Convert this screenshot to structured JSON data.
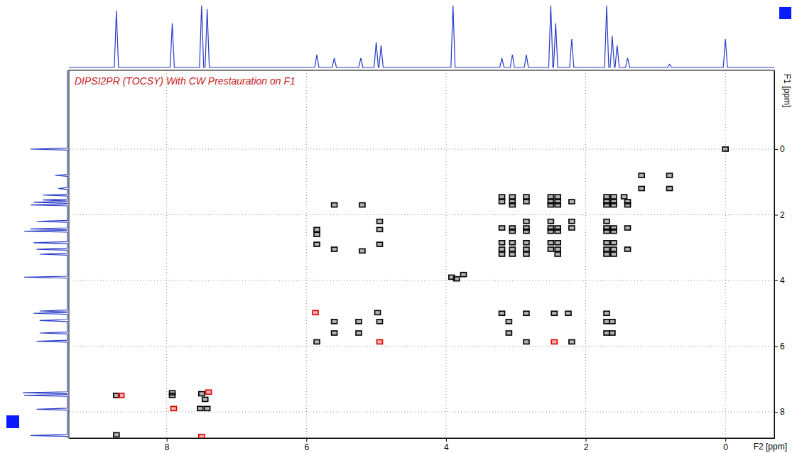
{
  "chart_data": {
    "type": "scatter",
    "title": "DIPSI2PR (TOCSY) With CW Prestauration on F1",
    "x_label": "F2 [ppm]",
    "y_label": "F1 [ppm]",
    "xlim": [
      9.4,
      -0.7
    ],
    "ylim": [
      -2.4,
      8.8
    ],
    "xticks": [
      8,
      6,
      4,
      2,
      0
    ],
    "yticks": [
      0,
      2,
      4,
      6,
      8
    ],
    "grid": true,
    "series": [
      {
        "color": "#000000",
        "marker": "square",
        "x": [
          8.72,
          8.72,
          7.92,
          7.92,
          7.5,
          7.42,
          7.52,
          7.45,
          5.85,
          4.98,
          5.6,
          5.25,
          5.6,
          5.25,
          4.95,
          5.85,
          5.85,
          5.85,
          5.6,
          5.6,
          5.2,
          5.2,
          4.95,
          4.95,
          4.95,
          3.2,
          3.1,
          3.1,
          2.85,
          2.45,
          2.25,
          2.2,
          1.7,
          1.7,
          1.62,
          1.7,
          1.62,
          2.85,
          3.92,
          3.85,
          3.75,
          0,
          0.8,
          0.8,
          1.2,
          1.2,
          3.2,
          3.05,
          2.85,
          2.5,
          2.4,
          1.7,
          1.6,
          1.45,
          3.2,
          3.05,
          2.85,
          2.5,
          2.4,
          2.2,
          1.7,
          1.6,
          1.4,
          3.05,
          2.5,
          2.4,
          1.7,
          1.6,
          1.4,
          2.85,
          2.5,
          2.2,
          1.7,
          3.2,
          3.05,
          2.85,
          2.5,
          2.4,
          2.2,
          1.7,
          1.6,
          1.4,
          3.05,
          2.85,
          2.5,
          2.4,
          1.7,
          1.6,
          3.2,
          3.05,
          2.85,
          2.5,
          2.4,
          1.7,
          1.6,
          3.2,
          3.05,
          2.85,
          2.5,
          2.4,
          1.7,
          1.6,
          1.4,
          3.2,
          3.05,
          2.85,
          2.4,
          1.7,
          1.6
        ],
        "values": [
          8.7,
          7.5,
          7.42,
          7.5,
          7.45,
          7.9,
          7.9,
          7.62,
          5.87,
          4.98,
          5.25,
          5.25,
          5.6,
          5.6,
          5.25,
          2.45,
          2.6,
          2.9,
          1.7,
          3.05,
          1.7,
          3.1,
          2.2,
          2.45,
          2.9,
          5.0,
          5.25,
          5.6,
          5.87,
          5.0,
          5.0,
          5.87,
          5.0,
          5.25,
          5.25,
          5.6,
          5.6,
          5.0,
          3.9,
          3.95,
          3.82,
          0,
          0.8,
          1.2,
          0.8,
          1.2,
          1.45,
          1.45,
          1.45,
          1.45,
          1.45,
          1.45,
          1.45,
          1.45,
          1.6,
          1.6,
          1.6,
          1.6,
          1.6,
          1.6,
          1.6,
          1.6,
          1.6,
          1.7,
          1.7,
          1.7,
          1.7,
          1.7,
          1.7,
          2.2,
          2.2,
          2.2,
          2.2,
          2.4,
          2.4,
          2.4,
          2.4,
          2.4,
          2.4,
          2.4,
          2.4,
          2.4,
          2.5,
          2.5,
          2.5,
          2.5,
          2.5,
          2.5,
          2.85,
          2.85,
          2.85,
          2.85,
          2.85,
          2.85,
          2.85,
          3.05,
          3.05,
          3.05,
          3.05,
          3.05,
          3.05,
          3.05,
          3.05,
          3.2,
          3.2,
          3.2,
          3.2,
          3.2,
          3.2
        ]
      },
      {
        "color": "#e00000",
        "marker": "square",
        "x": [
          8.65,
          7.9,
          7.4,
          7.5,
          5.87,
          4.95,
          2.45
        ],
        "values": [
          7.5,
          7.9,
          7.4,
          8.75,
          4.98,
          5.87,
          5.87
        ]
      }
    ],
    "intensity_lim": [
      0,
      100
    ],
    "f2_projection": {
      "color": "#2a3cc8",
      "ppm": [
        9.4,
        8.75,
        8.72,
        8.69,
        7.95,
        7.92,
        7.89,
        7.53,
        7.5,
        7.47,
        7.45,
        7.42,
        7.39,
        5.88,
        5.85,
        5.82,
        5.63,
        5.6,
        5.57,
        5.25,
        5.22,
        5.19,
        5.03,
        5.0,
        4.97,
        4.96,
        4.93,
        4.9,
        3.93,
        3.9,
        3.87,
        3.23,
        3.2,
        3.17,
        3.08,
        3.05,
        3.02,
        2.88,
        2.85,
        2.82,
        2.53,
        2.5,
        2.47,
        2.46,
        2.43,
        2.4,
        2.23,
        2.2,
        2.17,
        1.73,
        1.7,
        1.67,
        1.65,
        1.62,
        1.59,
        1.58,
        1.55,
        1.52,
        1.43,
        1.4,
        1.37,
        0.83,
        0.8,
        0.77,
        0.03,
        0,
        -0.03,
        -0.7
      ],
      "values": [
        0,
        0,
        90,
        0,
        0,
        70,
        0,
        0,
        98,
        0,
        0,
        92,
        0,
        0,
        20,
        0,
        0,
        15,
        0,
        0,
        15,
        0,
        0,
        40,
        0,
        0,
        35,
        0,
        0,
        98,
        0,
        0,
        15,
        0,
        0,
        20,
        0,
        0,
        20,
        0,
        0,
        98,
        0,
        0,
        70,
        0,
        0,
        45,
        0,
        0,
        98,
        0,
        0,
        50,
        0,
        0,
        35,
        0,
        0,
        15,
        0,
        0,
        5,
        0,
        0,
        45,
        0,
        0
      ]
    },
    "f1_projection": {
      "color": "#2a3cc8",
      "ppm": [
        8.8,
        8.75,
        8.72,
        8.69,
        7.95,
        7.92,
        7.89,
        7.53,
        7.5,
        7.47,
        7.45,
        7.42,
        7.39,
        5.88,
        5.85,
        5.82,
        5.63,
        5.6,
        5.57,
        5.25,
        5.22,
        5.19,
        5.03,
        5.0,
        4.97,
        4.96,
        4.93,
        4.9,
        3.93,
        3.9,
        3.87,
        3.23,
        3.2,
        3.17,
        3.08,
        3.05,
        3.02,
        2.88,
        2.85,
        2.82,
        2.53,
        2.5,
        2.47,
        2.46,
        2.43,
        2.4,
        2.23,
        2.2,
        2.17,
        1.73,
        1.7,
        1.67,
        1.65,
        1.62,
        1.59,
        1.58,
        1.55,
        1.52,
        1.43,
        1.4,
        1.37,
        1.23,
        1.2,
        1.17,
        0.83,
        0.8,
        0.77,
        0.03,
        0,
        -0.03,
        -2.4
      ],
      "values": [
        0,
        0,
        60,
        0,
        0,
        50,
        0,
        0,
        70,
        0,
        0,
        72,
        0,
        0,
        50,
        0,
        0,
        45,
        0,
        0,
        45,
        0,
        0,
        55,
        0,
        0,
        45,
        0,
        0,
        70,
        0,
        0,
        45,
        0,
        0,
        50,
        0,
        0,
        55,
        0,
        0,
        70,
        0,
        0,
        60,
        0,
        0,
        50,
        0,
        0,
        60,
        0,
        0,
        55,
        0,
        0,
        40,
        0,
        0,
        40,
        0,
        0,
        15,
        0,
        0,
        20,
        0,
        0,
        60,
        0,
        0
      ]
    }
  }
}
